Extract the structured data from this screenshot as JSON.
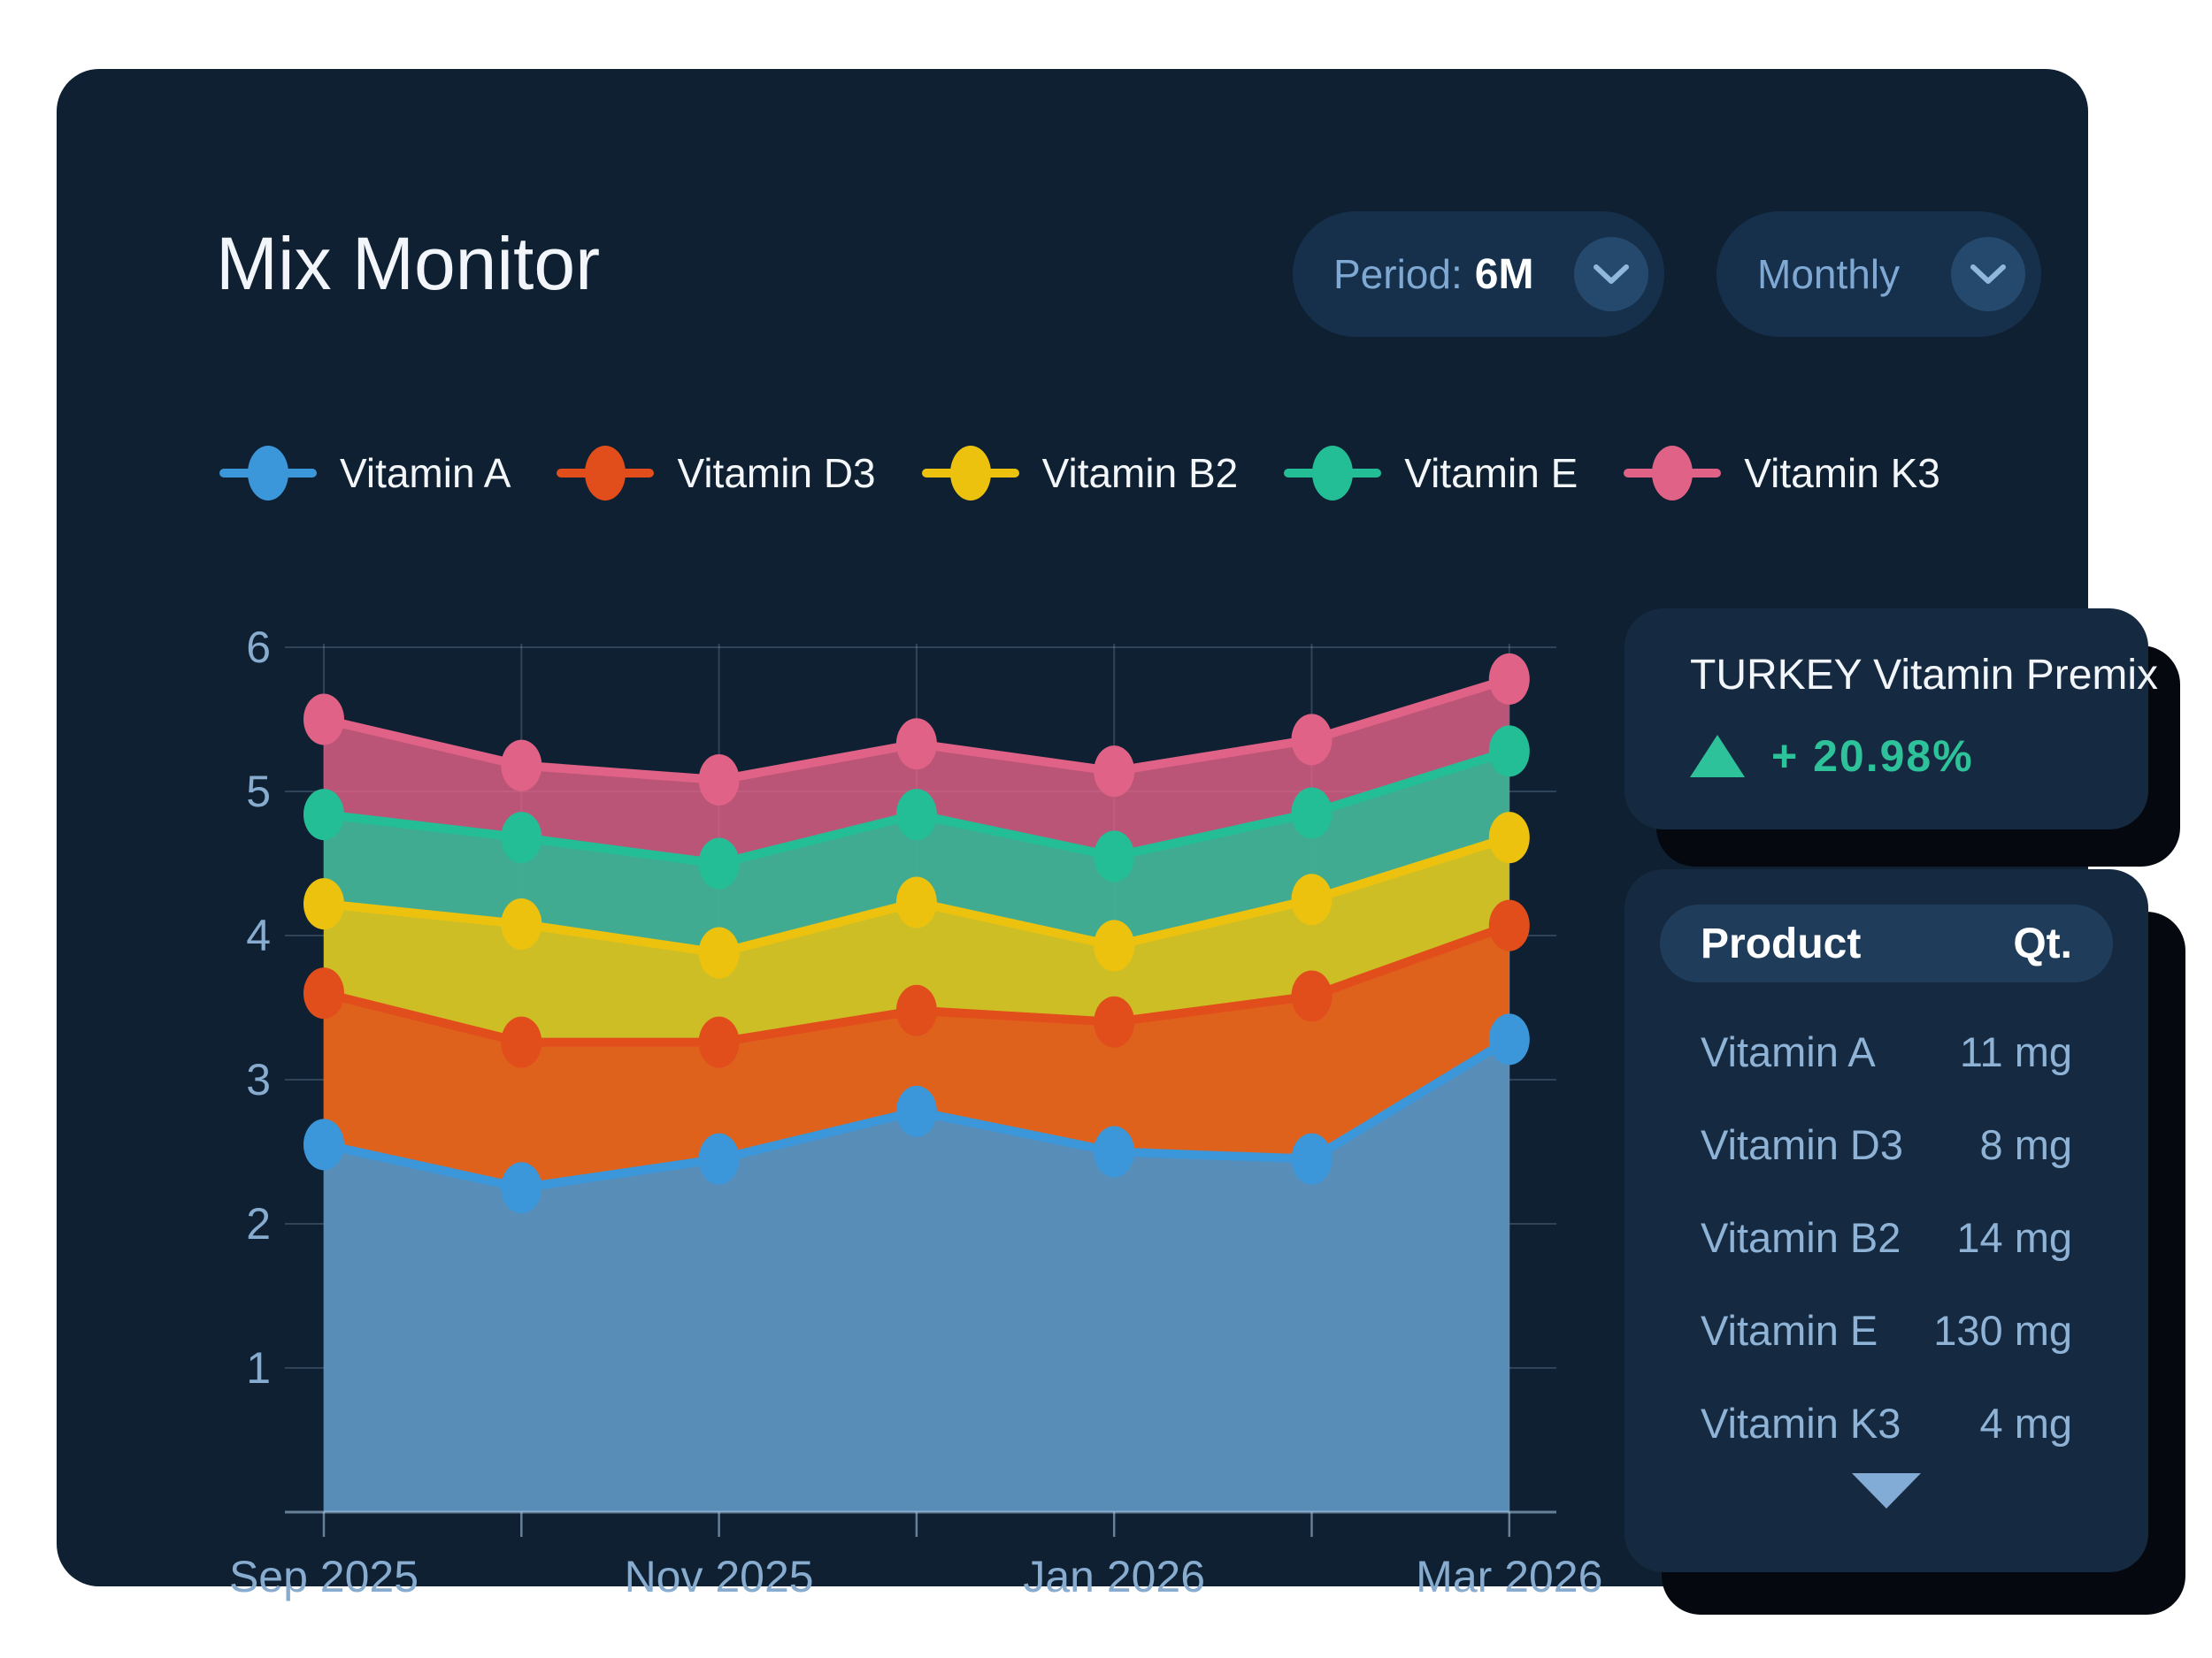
{
  "header": {
    "title": "Mix Monitor",
    "period_dropdown": {
      "label": "Period:",
      "value": "6M"
    },
    "interval_dropdown": {
      "value": "Monthly"
    }
  },
  "chart_data": {
    "type": "area",
    "stacked": true,
    "note": "values are cumulative stack tops as plotted, units on y axis",
    "x": [
      "Sep 2025",
      "Oct 2025",
      "Nov 2025",
      "Dec 2025",
      "Jan 2026",
      "Feb 2026",
      "Mar 2026"
    ],
    "x_tick_labels": [
      "Sep 2025",
      "Nov 2025",
      "Jan 2026",
      "Mar 2026"
    ],
    "x_tick_indices": [
      0,
      2,
      4,
      6
    ],
    "ylim": [
      0,
      6
    ],
    "yticks": [
      1,
      2,
      3,
      4,
      5,
      6
    ],
    "grid": true,
    "legend_position": "top",
    "series": [
      {
        "name": "Vitamin A",
        "color": "#3B97DA",
        "cumulative_values": [
          2.55,
          2.25,
          2.45,
          2.78,
          2.5,
          2.45,
          3.28
        ]
      },
      {
        "name": "Vitamin D3",
        "color": "#E24E1B",
        "cumulative_values": [
          3.6,
          3.26,
          3.26,
          3.48,
          3.4,
          3.58,
          4.07
        ]
      },
      {
        "name": "Vitamin B2",
        "color": "#EDC20F",
        "cumulative_values": [
          4.22,
          4.08,
          3.88,
          4.23,
          3.93,
          4.25,
          4.68
        ]
      },
      {
        "name": "Vitamin E",
        "color": "#24BE96",
        "cumulative_values": [
          4.84,
          4.68,
          4.5,
          4.84,
          4.55,
          4.85,
          5.28
        ]
      },
      {
        "name": "Vitamin K3",
        "color": "#E06287",
        "cumulative_values": [
          5.5,
          5.18,
          5.08,
          5.33,
          5.14,
          5.36,
          5.78
        ]
      }
    ]
  },
  "summary_card": {
    "title": "TURKEY Vitamin Premix",
    "direction": "up",
    "change": "+ 20.98%",
    "accent_color": "#2EC29B"
  },
  "product_table": {
    "columns": [
      "Product",
      "Qt."
    ],
    "rows": [
      {
        "product": "Vitamin A",
        "qty": "11 mg"
      },
      {
        "product": "Vitamin D3",
        "qty": "8 mg"
      },
      {
        "product": "Vitamin B2",
        "qty": "14 mg"
      },
      {
        "product": "Vitamin E",
        "qty": "130 mg"
      },
      {
        "product": "Vitamin K3",
        "qty": "4 mg"
      }
    ]
  },
  "colors": {
    "page_bg": "#FFFFFF",
    "card_bg": "#0E2031",
    "panel_bg": "#152A40",
    "pill_bg": "#16304B",
    "pill_circle": "#25496C",
    "table_header_bg": "#1F3D5B",
    "muted_text": "#8FB3D6",
    "axis_text": "#87ACCF",
    "shadow": "#05090F"
  }
}
